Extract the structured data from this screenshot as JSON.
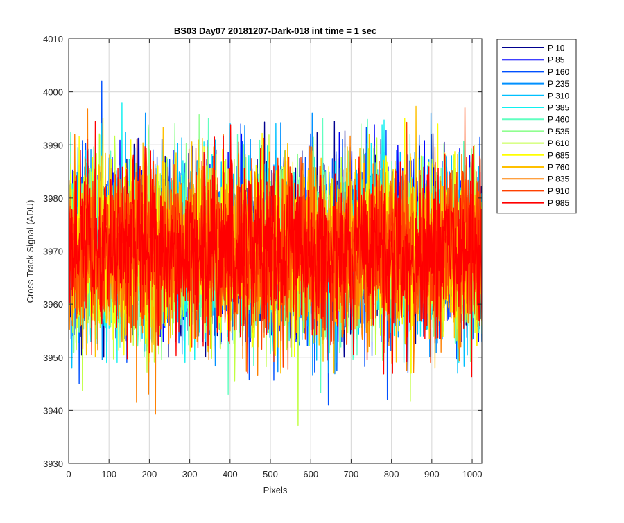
{
  "chart_data": {
    "type": "line",
    "title": "BS03 Day07 20181207-Dark-018 int time = 1 sec",
    "xlabel": "Pixels",
    "ylabel": "Cross Track Signal (ADU)",
    "xlim": [
      0,
      1024
    ],
    "ylim": [
      3930,
      4010
    ],
    "xticks": [
      0,
      100,
      200,
      300,
      400,
      500,
      600,
      700,
      800,
      900,
      1000
    ],
    "yticks": [
      3930,
      3940,
      3950,
      3960,
      3970,
      3980,
      3990,
      4000,
      4010
    ],
    "grid": true,
    "legend_position": "outside-right-top",
    "noise_model": {
      "mean": 3970,
      "std": 8,
      "n_points": 1024
    },
    "series": [
      {
        "name": "P 10",
        "color": "#00008f",
        "mean": 3970.5,
        "min": 3950,
        "max": 3997
      },
      {
        "name": "P 85",
        "color": "#0000ff",
        "mean": 3970.2,
        "min": 3953,
        "max": 3996
      },
      {
        "name": "P 160",
        "color": "#0050ff",
        "mean": 3970.0,
        "min": 3941,
        "max": 4002
      },
      {
        "name": "P 235",
        "color": "#0090ff",
        "mean": 3970.1,
        "min": 3946,
        "max": 3996
      },
      {
        "name": "P 310",
        "color": "#00c0ff",
        "mean": 3970.3,
        "min": 3947,
        "max": 3994
      },
      {
        "name": "P 385",
        "color": "#10f0f0",
        "mean": 3970.0,
        "min": 3949,
        "max": 3998
      },
      {
        "name": "P 460",
        "color": "#60ffc0",
        "mean": 3969.8,
        "min": 3943,
        "max": 3995
      },
      {
        "name": "P 535",
        "color": "#90ff90",
        "mean": 3970.2,
        "min": 3948,
        "max": 3997
      },
      {
        "name": "P 610",
        "color": "#c0ff40",
        "mean": 3970.0,
        "min": 3935,
        "max": 3994
      },
      {
        "name": "P 685",
        "color": "#ffff00",
        "mean": 3970.1,
        "min": 3947,
        "max": 3995
      },
      {
        "name": "P 760",
        "color": "#ffc000",
        "mean": 3970.4,
        "min": 3947,
        "max": 4001
      },
      {
        "name": "P 835",
        "color": "#ff8000",
        "mean": 3970.0,
        "min": 3939,
        "max": 4000
      },
      {
        "name": "P 910",
        "color": "#ff4000",
        "mean": 3970.2,
        "min": 3944,
        "max": 3997
      },
      {
        "name": "P 985",
        "color": "#ff0000",
        "mean": 3970.0,
        "min": 3935,
        "max": 4000
      }
    ]
  }
}
